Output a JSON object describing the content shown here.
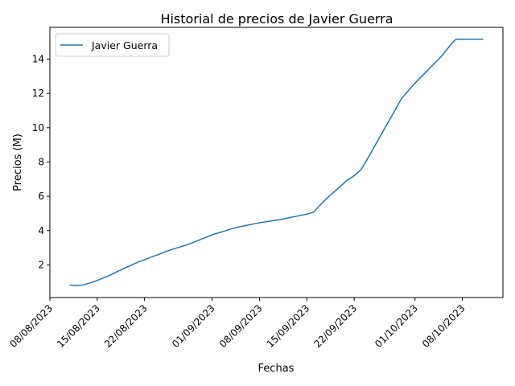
{
  "chart_data": {
    "type": "line",
    "title": "Historial de precios de Javier Guerra",
    "xlabel": "Fechas",
    "ylabel": "Precios (M)",
    "xlim": [
      "2023-08-08",
      "2023-10-14"
    ],
    "ylim": [
      0.1,
      15.85
    ],
    "x_ticks": [
      "2023-08-08",
      "2023-08-15",
      "2023-08-22",
      "2023-09-01",
      "2023-09-08",
      "2023-09-15",
      "2023-09-22",
      "2023-10-01",
      "2023-10-08"
    ],
    "x_tick_labels": [
      "08/08/2023",
      "15/08/2023",
      "22/08/2023",
      "01/09/2023",
      "08/09/2023",
      "15/09/2023",
      "22/09/2023",
      "01/10/2023",
      "08/10/2023"
    ],
    "y_ticks": [
      2,
      4,
      6,
      8,
      10,
      12,
      14
    ],
    "y_tick_labels": [
      "2",
      "4",
      "6",
      "8",
      "10",
      "12",
      "14"
    ],
    "legend_position": "upper-left",
    "grid": false,
    "series": [
      {
        "name": "Javier Guerra",
        "color": "#1f77b4",
        "x": [
          "2023-08-11",
          "2023-08-12",
          "2023-08-13",
          "2023-08-14",
          "2023-08-15",
          "2023-08-16",
          "2023-08-17",
          "2023-08-18",
          "2023-08-19",
          "2023-08-20",
          "2023-08-21",
          "2023-08-22",
          "2023-08-23",
          "2023-08-24",
          "2023-08-25",
          "2023-08-26",
          "2023-08-27",
          "2023-08-28",
          "2023-08-29",
          "2023-08-30",
          "2023-08-31",
          "2023-09-01",
          "2023-09-02",
          "2023-09-03",
          "2023-09-04",
          "2023-09-05",
          "2023-09-06",
          "2023-09-07",
          "2023-09-08",
          "2023-09-09",
          "2023-09-10",
          "2023-09-11",
          "2023-09-12",
          "2023-09-13",
          "2023-09-14",
          "2023-09-15",
          "2023-09-16",
          "2023-09-17",
          "2023-09-18",
          "2023-09-19",
          "2023-09-20",
          "2023-09-21",
          "2023-09-22",
          "2023-09-23",
          "2023-09-24",
          "2023-09-25",
          "2023-09-26",
          "2023-09-27",
          "2023-09-28",
          "2023-09-29",
          "2023-09-30",
          "2023-10-01",
          "2023-10-02",
          "2023-10-03",
          "2023-10-04",
          "2023-10-05",
          "2023-10-06",
          "2023-10-07",
          "2023-10-08",
          "2023-10-09",
          "2023-10-10",
          "2023-10-11"
        ],
        "y": [
          0.82,
          0.8,
          0.84,
          0.96,
          1.1,
          1.26,
          1.42,
          1.62,
          1.8,
          1.98,
          2.16,
          2.3,
          2.46,
          2.6,
          2.76,
          2.9,
          3.02,
          3.14,
          3.28,
          3.44,
          3.6,
          3.76,
          3.88,
          4.0,
          4.12,
          4.22,
          4.3,
          4.38,
          4.46,
          4.52,
          4.58,
          4.64,
          4.72,
          4.8,
          4.88,
          4.96,
          5.08,
          5.5,
          5.9,
          6.25,
          6.6,
          6.95,
          7.2,
          7.55,
          8.2,
          8.9,
          9.6,
          10.3,
          11.0,
          11.7,
          12.15,
          12.6,
          13.0,
          13.4,
          13.8,
          14.2,
          14.7,
          15.15,
          15.15,
          15.15,
          15.15,
          15.15
        ]
      }
    ]
  }
}
